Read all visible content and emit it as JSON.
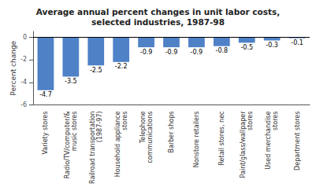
{
  "chart_data": {
    "type": "bar",
    "title": "Average annual percent changes in unit labor costs,\nselected industries, 1987-98",
    "ylabel": "Percent change",
    "categories": [
      "Variety stores",
      "Radio/TV/computer/&\nmusic stores",
      "Railroad transportation\n(1987-97)",
      "Household appliance\nstores",
      "Telephone\ncommunications",
      "Barber shops",
      "Nonstore retailers",
      "Retail stores, nec",
      "Paint/glass/wallpaper\nstores",
      "Used merchandise\nstores",
      "Department stores"
    ],
    "values": [
      -4.7,
      -3.5,
      -2.5,
      -2.2,
      -0.9,
      -0.9,
      -0.9,
      -0.8,
      -0.5,
      -0.3,
      -0.1
    ],
    "color": "#4f81c7",
    "ylim": [
      -6,
      0.5
    ],
    "yticks": [
      0,
      -2,
      -4,
      -6
    ],
    "data_labels": true,
    "grid": false
  }
}
